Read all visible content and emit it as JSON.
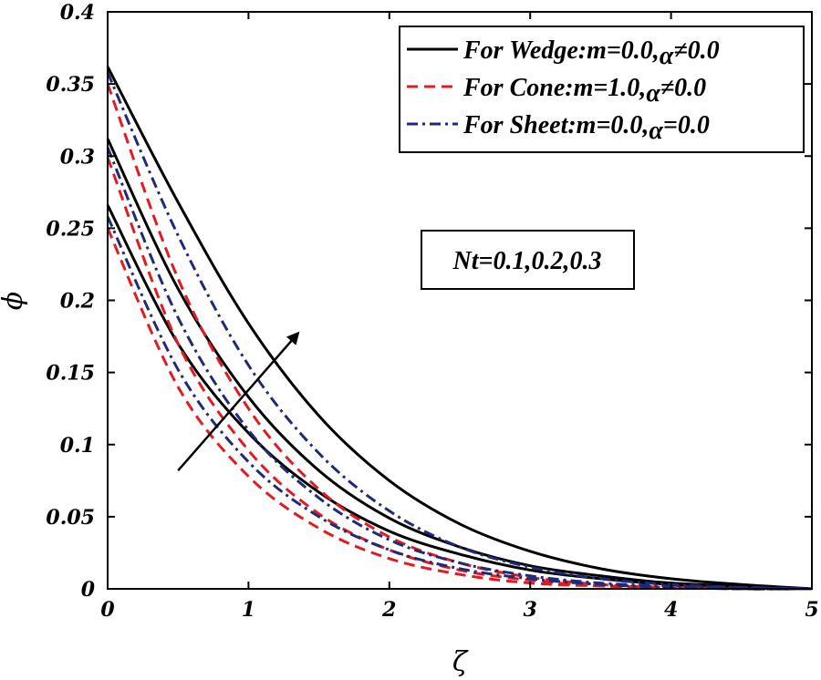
{
  "chart_data": {
    "type": "line",
    "title": "",
    "xlabel": "ζ",
    "ylabel": "ϕ",
    "xlim": [
      0,
      5
    ],
    "ylim": [
      0,
      0.4
    ],
    "xticks": [
      "0",
      "1",
      "2",
      "3",
      "4",
      "5"
    ],
    "yticks": [
      "0",
      "0.05",
      "0.1",
      "0.15",
      "0.2",
      "0.25",
      "0.3",
      "0.35",
      "0.4"
    ],
    "x": [
      0,
      0.5,
      1,
      1.5,
      2,
      2.5,
      3,
      3.5,
      4,
      4.5,
      5
    ],
    "series": [
      {
        "name": "For Wedge:m=0.0, α≠0.0 (Nt=0.1)",
        "group": "wedge",
        "color": "#000000",
        "dash": "solid",
        "values": [
          0.266,
          0.17,
          0.108,
          0.067,
          0.04,
          0.024,
          0.013,
          0.007,
          0.003,
          0.001,
          0.0
        ]
      },
      {
        "name": "For Wedge:m=0.0, α≠0.0 (Nt=0.2)",
        "group": "wedge",
        "color": "#000000",
        "dash": "solid",
        "values": [
          0.312,
          0.208,
          0.133,
          0.082,
          0.049,
          0.029,
          0.016,
          0.009,
          0.004,
          0.002,
          0.0
        ]
      },
      {
        "name": "For Wedge:m=0.0, α≠0.0 (Nt=0.3)",
        "group": "wedge",
        "color": "#000000",
        "dash": "solid",
        "values": [
          0.362,
          0.268,
          0.184,
          0.12,
          0.075,
          0.045,
          0.026,
          0.014,
          0.007,
          0.003,
          0.0
        ]
      },
      {
        "name": "For Cone:m=1.0, α≠0.0 (Nt=0.1)",
        "group": "cone",
        "color": "#e21b23",
        "dash": "dashed",
        "values": [
          0.25,
          0.14,
          0.078,
          0.042,
          0.021,
          0.01,
          0.004,
          0.002,
          0.001,
          0.0,
          0.0
        ]
      },
      {
        "name": "For Cone:m=1.0, α≠0.0 (Nt=0.2)",
        "group": "cone",
        "color": "#e21b23",
        "dash": "dashed",
        "values": [
          0.299,
          0.17,
          0.096,
          0.052,
          0.027,
          0.013,
          0.006,
          0.002,
          0.001,
          0.0,
          0.0
        ]
      },
      {
        "name": "For Cone:m=1.0, α≠0.0 (Nt=0.3)",
        "group": "cone",
        "color": "#e21b23",
        "dash": "dashed",
        "values": [
          0.35,
          0.215,
          0.125,
          0.069,
          0.036,
          0.018,
          0.008,
          0.003,
          0.001,
          0.0,
          0.0
        ]
      },
      {
        "name": "For Sheet:m=0.0, α=0.0 (Nt=0.1)",
        "group": "sheet",
        "color": "#1f2a78",
        "dash": "dashdot",
        "values": [
          0.258,
          0.152,
          0.088,
          0.05,
          0.027,
          0.014,
          0.007,
          0.003,
          0.001,
          0.0,
          0.0
        ]
      },
      {
        "name": "For Sheet:m=0.0, α=0.0 (Nt=0.2)",
        "group": "sheet",
        "color": "#1f2a78",
        "dash": "dashdot",
        "values": [
          0.306,
          0.188,
          0.11,
          0.063,
          0.034,
          0.018,
          0.009,
          0.004,
          0.002,
          0.001,
          0.0
        ]
      },
      {
        "name": "For Sheet:m=0.0, α=0.0 (Nt=0.3)",
        "group": "sheet",
        "color": "#1f2a78",
        "dash": "dashdot",
        "values": [
          0.358,
          0.245,
          0.155,
          0.094,
          0.054,
          0.029,
          0.015,
          0.007,
          0.003,
          0.001,
          0.0
        ]
      }
    ],
    "legend": {
      "placement": "top-right",
      "entries": [
        {
          "text": "For Wedge:m=0.0,",
          "greek": "α",
          "suffix": "≠0.0",
          "color": "#000000",
          "dash": "solid"
        },
        {
          "text": "For Cone:m=1.0,",
          "greek": "α",
          "suffix": "≠0.0",
          "color": "#e21b23",
          "dash": "dashed"
        },
        {
          "text": "For Sheet:m=0.0,",
          "greek": "α",
          "suffix": "=0.0",
          "color": "#1f2a78",
          "dash": "dashdot"
        }
      ]
    },
    "annotations": [
      {
        "text": "Nt=0.1,0.2,0.3",
        "placement": "center-right",
        "boxed": true
      },
      {
        "type": "arrow",
        "from": [
          0.5,
          0.082
        ],
        "to": [
          1.35,
          0.177
        ],
        "meaning": "increasing Nt"
      }
    ],
    "grid": false
  }
}
